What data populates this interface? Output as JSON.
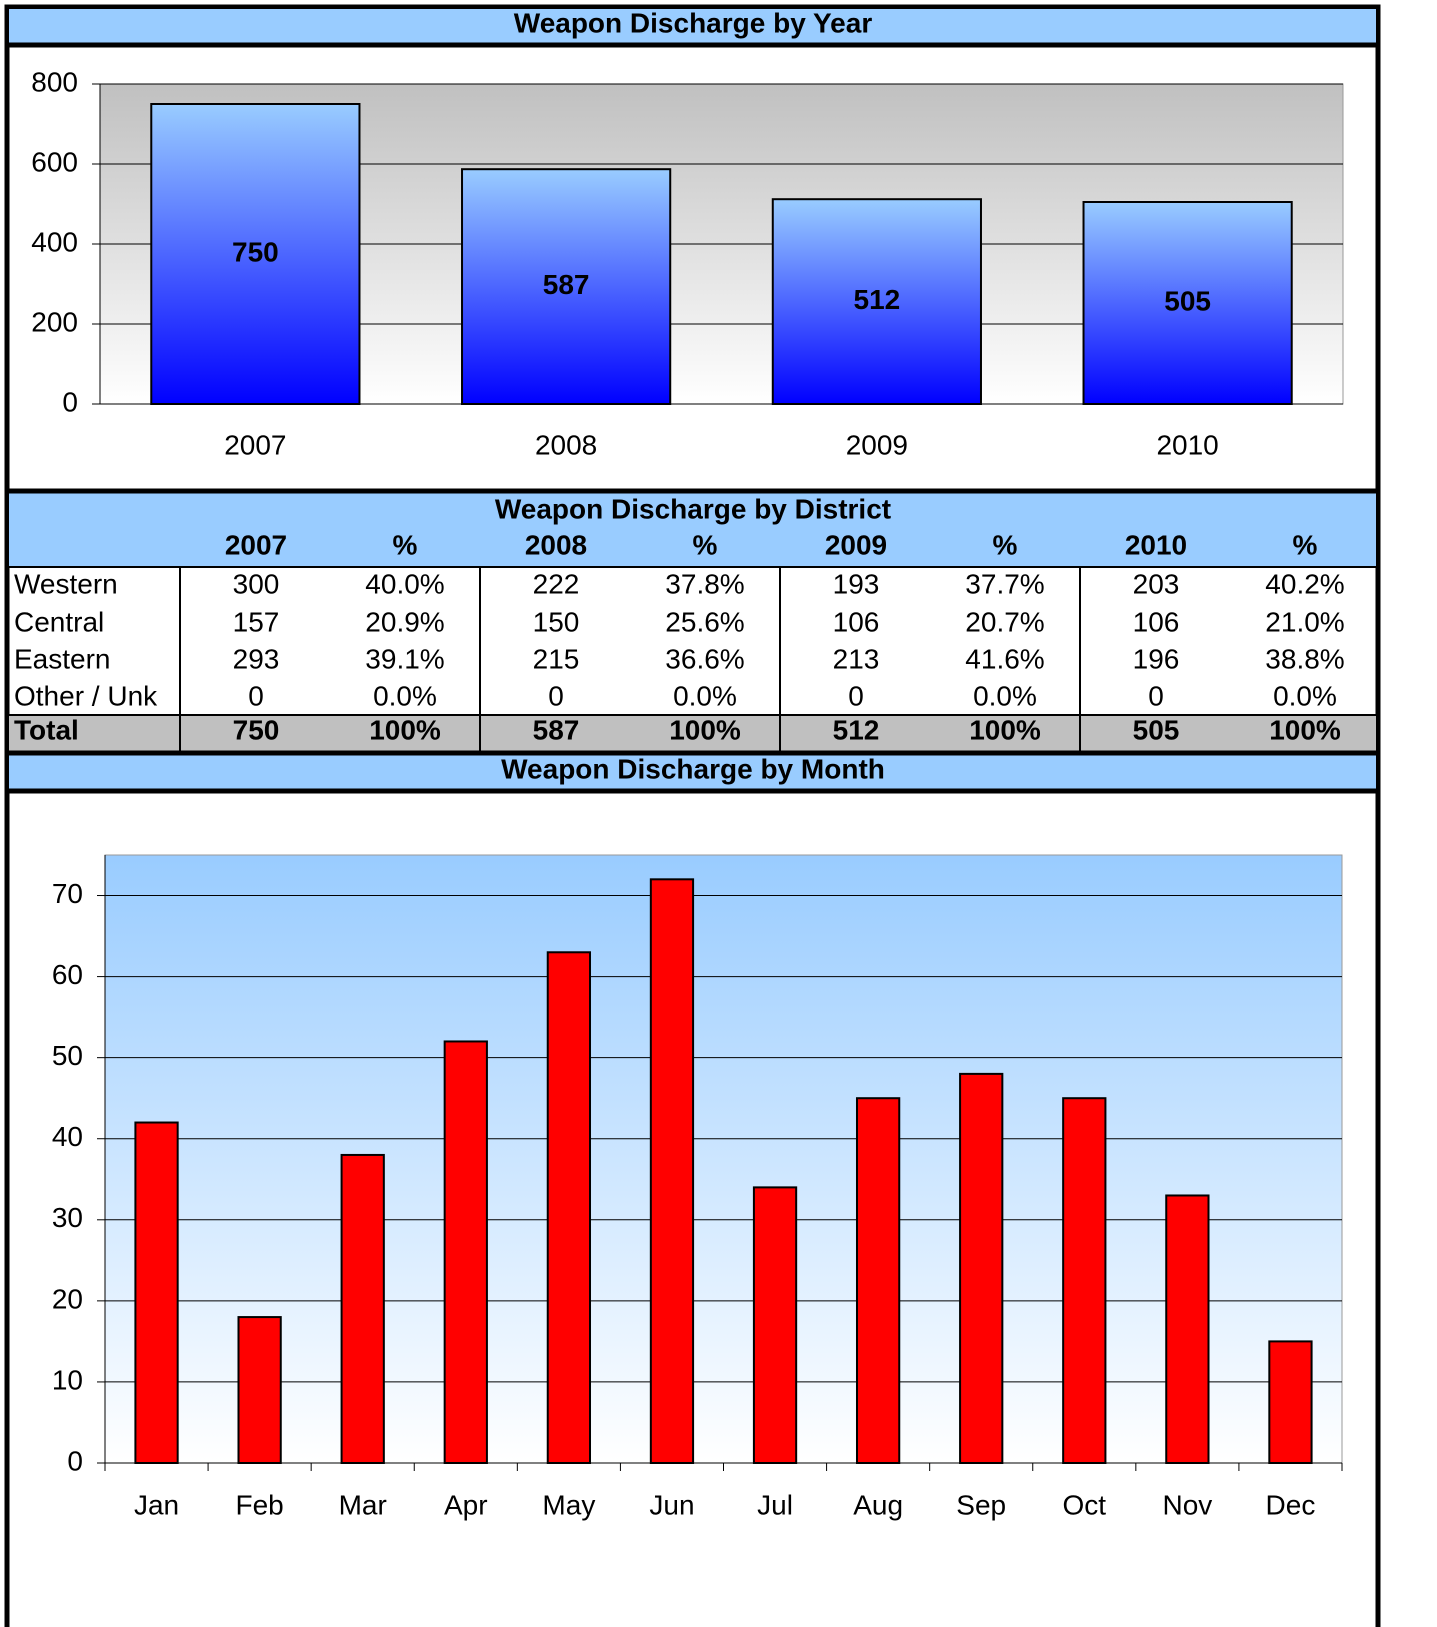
{
  "chart_data": [
    {
      "type": "bar",
      "title": "Weapon Discharge by Year",
      "categories": [
        "2007",
        "2008",
        "2009",
        "2010"
      ],
      "values": [
        750,
        587,
        512,
        505
      ],
      "ylim": [
        0,
        800
      ],
      "yticks": [
        0,
        200,
        400,
        600,
        800
      ],
      "grid": true,
      "color": "#0000ff"
    },
    {
      "type": "bar",
      "title": "Weapon Discharge by Month",
      "categories": [
        "Jan",
        "Feb",
        "Mar",
        "Apr",
        "May",
        "Jun",
        "Jul",
        "Aug",
        "Sep",
        "Oct",
        "Nov",
        "Dec"
      ],
      "values": [
        42,
        18,
        38,
        52,
        63,
        72,
        34,
        45,
        48,
        45,
        33,
        15
      ],
      "ylim": [
        0,
        75
      ],
      "yticks": [
        0,
        10,
        20,
        30,
        40,
        50,
        60,
        70
      ],
      "grid": true,
      "color": "#ff0000"
    }
  ],
  "table": {
    "title": "Weapon Discharge by District",
    "columns": [
      "2007",
      "%",
      "2008",
      "%",
      "2009",
      "%",
      "2010",
      "%"
    ],
    "rows": [
      {
        "label": "Western",
        "cells": [
          "300",
          "40.0%",
          "222",
          "37.8%",
          "193",
          "37.7%",
          "203",
          "40.2%"
        ]
      },
      {
        "label": "Central",
        "cells": [
          "157",
          "20.9%",
          "150",
          "25.6%",
          "106",
          "20.7%",
          "106",
          "21.0%"
        ]
      },
      {
        "label": "Eastern",
        "cells": [
          "293",
          "39.1%",
          "215",
          "36.6%",
          "213",
          "41.6%",
          "196",
          "38.8%"
        ]
      },
      {
        "label": "Other / Unk",
        "cells": [
          "0",
          "0.0%",
          "0",
          "0.0%",
          "0",
          "0.0%",
          "0",
          "0.0%"
        ]
      }
    ],
    "total": {
      "label": "Total",
      "cells": [
        "750",
        "100%",
        "587",
        "100%",
        "512",
        "100%",
        "505",
        "100%"
      ]
    }
  }
}
